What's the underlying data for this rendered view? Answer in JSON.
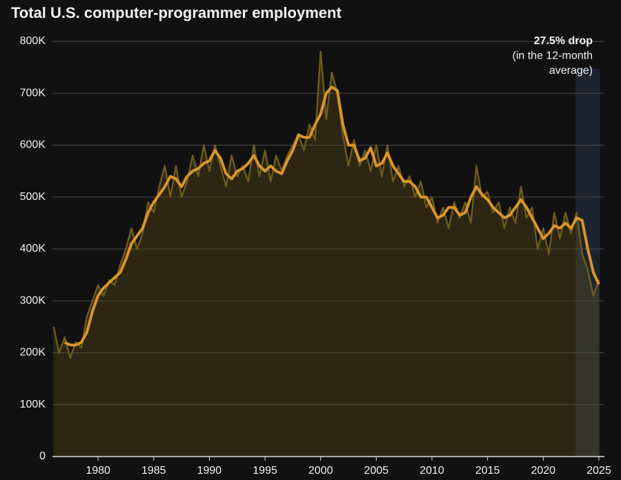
{
  "chart_data": {
    "type": "line",
    "title": "Total U.S. computer-programmer employment",
    "annotations": [
      "27.5% drop",
      "(in the 12-month",
      "average)"
    ],
    "highlight_x": [
      2022.9,
      2025.1
    ],
    "area": true,
    "x": [
      1976,
      1976.5,
      1977,
      1977.5,
      1978,
      1978.5,
      1979,
      1979.5,
      1980,
      1980.5,
      1981,
      1981.5,
      1982,
      1982.5,
      1983,
      1983.5,
      1984,
      1984.5,
      1985,
      1985.5,
      1986,
      1986.5,
      1987,
      1987.5,
      1988,
      1988.5,
      1989,
      1989.5,
      1990,
      1990.5,
      1991,
      1991.5,
      1992,
      1992.5,
      1993,
      1993.5,
      1994,
      1994.5,
      1995,
      1995.5,
      1996,
      1996.5,
      1997,
      1997.5,
      1998,
      1998.5,
      1999,
      1999.5,
      2000,
      2000.5,
      2001,
      2001.5,
      2002,
      2002.5,
      2003,
      2003.5,
      2004,
      2004.5,
      2005,
      2005.5,
      2006,
      2006.5,
      2007,
      2007.5,
      2008,
      2008.5,
      2009,
      2009.5,
      2010,
      2010.5,
      2011,
      2011.5,
      2012,
      2012.5,
      2013,
      2013.5,
      2014,
      2014.5,
      2015,
      2015.5,
      2016,
      2016.5,
      2017,
      2017.5,
      2018,
      2018.5,
      2019,
      2019.5,
      2020,
      2020.5,
      2021,
      2021.5,
      2022,
      2022.5,
      2023,
      2023.5,
      2024,
      2024.5,
      2025
    ],
    "series": [
      {
        "color": "#6e5a1c",
        "width": 2.5,
        "values": [
          250000,
          200000,
          230000,
          190000,
          220000,
          210000,
          270000,
          300000,
          330000,
          310000,
          340000,
          330000,
          370000,
          400000,
          440000,
          400000,
          430000,
          490000,
          470000,
          520000,
          560000,
          500000,
          560000,
          500000,
          530000,
          580000,
          540000,
          600000,
          550000,
          600000,
          560000,
          520000,
          580000,
          540000,
          560000,
          530000,
          600000,
          540000,
          590000,
          530000,
          580000,
          550000,
          580000,
          600000,
          620000,
          590000,
          640000,
          610000,
          780000,
          650000,
          740000,
          700000,
          620000,
          560000,
          610000,
          560000,
          590000,
          550000,
          600000,
          540000,
          600000,
          530000,
          560000,
          520000,
          540000,
          500000,
          530000,
          480000,
          500000,
          450000,
          480000,
          440000,
          490000,
          460000,
          490000,
          450000,
          560000,
          500000,
          510000,
          470000,
          490000,
          440000,
          480000,
          450000,
          520000,
          460000,
          480000,
          400000,
          440000,
          390000,
          470000,
          420000,
          470000,
          430000,
          470000,
          390000,
          360000,
          310000,
          340000
        ]
      },
      {
        "color": "#d9952a",
        "width": 4,
        "values": [
          null,
          null,
          220000,
          215000,
          215000,
          220000,
          240000,
          280000,
          310000,
          325000,
          335000,
          345000,
          355000,
          380000,
          410000,
          425000,
          440000,
          470000,
          490000,
          505000,
          520000,
          540000,
          535000,
          520000,
          540000,
          550000,
          555000,
          565000,
          570000,
          590000,
          575000,
          545000,
          535000,
          550000,
          555000,
          565000,
          580000,
          560000,
          550000,
          560000,
          550000,
          545000,
          570000,
          590000,
          620000,
          615000,
          615000,
          640000,
          660000,
          700000,
          712000,
          705000,
          640000,
          600000,
          600000,
          570000,
          575000,
          595000,
          560000,
          565000,
          585000,
          560000,
          545000,
          530000,
          530000,
          520000,
          500000,
          500000,
          480000,
          460000,
          465000,
          480000,
          480000,
          465000,
          470000,
          500000,
          520000,
          505000,
          495000,
          480000,
          470000,
          460000,
          465000,
          480000,
          495000,
          480000,
          460000,
          440000,
          420000,
          430000,
          445000,
          440000,
          450000,
          440000,
          460000,
          455000,
          400000,
          355000,
          332000
        ]
      }
    ],
    "xlim": [
      1975.9,
      2025.5
    ],
    "xticks": [
      1980,
      1985,
      1990,
      1995,
      2000,
      2005,
      2010,
      2015,
      2020,
      2025
    ],
    "ylim": [
      0,
      800000
    ],
    "yticks": [
      0,
      {
        "value": 100000,
        "label": "100K"
      },
      {
        "value": 200000,
        "label": "200K"
      },
      {
        "value": 300000,
        "label": "300K"
      },
      {
        "value": 400000,
        "label": "400K"
      },
      {
        "value": 500000,
        "label": "500K"
      },
      {
        "value": 600000,
        "label": "600K"
      },
      {
        "value": 700000,
        "label": "700K"
      },
      {
        "value": 800000,
        "label": "800K"
      }
    ],
    "grid": true
  }
}
